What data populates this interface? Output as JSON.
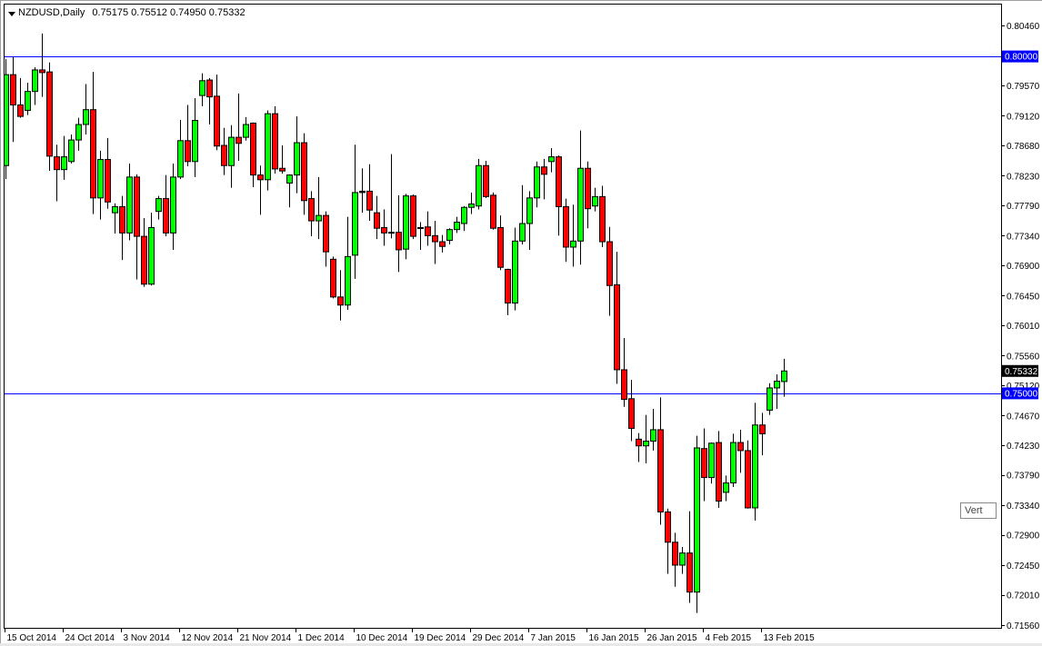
{
  "header": {
    "symbol_timeframe": "NZDUSD,Daily",
    "ohlc": "0.75175 0.75512 0.74950 0.75332",
    "menu_icon": "triangle-down-icon"
  },
  "tooltip": {
    "text": "Vert"
  },
  "chart_data": {
    "type": "candlestick",
    "symbol": "NZDUSD",
    "timeframe": "Daily",
    "ylim": [
      0.7156,
      0.8046
    ],
    "grid": false,
    "colors": {
      "bull": "#00ff00",
      "bear": "#ff0000",
      "outline": "#000000",
      "hline": "#0000ff",
      "background": "#ffffff"
    },
    "y_ticks": [
      "0.80460",
      "0.79570",
      "0.79120",
      "0.78680",
      "0.78230",
      "0.77790",
      "0.77340",
      "0.76900",
      "0.76450",
      "0.76010",
      "0.75560",
      "0.75120",
      "0.74670",
      "0.74230",
      "0.73790",
      "0.73340",
      "0.72900",
      "0.72450",
      "0.72010",
      "0.71560"
    ],
    "x_ticks": [
      "15 Oct 2014",
      "24 Oct 2014",
      "3 Nov 2014",
      "12 Nov 2014",
      "21 Nov 2014",
      "1 Dec 2014",
      "10 Dec 2014",
      "19 Dec 2014",
      "29 Dec 2014",
      "7 Jan 2015",
      "16 Jan 2015",
      "26 Jan 2015",
      "4 Feb 2015",
      "13 Feb 2015"
    ],
    "x_tick_every_bars": 8,
    "horizontal_lines": [
      {
        "price": 0.8,
        "label": "0.80000",
        "color": "#0000ff"
      },
      {
        "price": 0.75,
        "label": "0.75000",
        "color": "#0000ff"
      }
    ],
    "current_price": {
      "price": 0.75332,
      "label": "0.75332",
      "color": "#000000"
    },
    "ohlc_columns": [
      "open",
      "high",
      "low",
      "close"
    ],
    "candles": [
      [
        0.7838,
        0.7996,
        0.7818,
        0.7973
      ],
      [
        0.7973,
        0.7999,
        0.7873,
        0.7928
      ],
      [
        0.7928,
        0.7968,
        0.7909,
        0.7911
      ],
      [
        0.792,
        0.7961,
        0.7913,
        0.7948
      ],
      [
        0.7948,
        0.7984,
        0.7928,
        0.798
      ],
      [
        0.798,
        0.8034,
        0.794,
        0.7976
      ],
      [
        0.7977,
        0.7991,
        0.783,
        0.7852
      ],
      [
        0.7851,
        0.7869,
        0.7785,
        0.7832
      ],
      [
        0.7832,
        0.7882,
        0.7817,
        0.7851
      ],
      [
        0.7844,
        0.7884,
        0.7841,
        0.7876
      ],
      [
        0.7876,
        0.7909,
        0.786,
        0.7899
      ],
      [
        0.7899,
        0.7959,
        0.7884,
        0.7921
      ],
      [
        0.7921,
        0.7977,
        0.7766,
        0.779
      ],
      [
        0.779,
        0.786,
        0.7758,
        0.7847
      ],
      [
        0.7847,
        0.7879,
        0.7774,
        0.7784
      ],
      [
        0.7768,
        0.7782,
        0.7737,
        0.7777
      ],
      [
        0.7777,
        0.7793,
        0.7698,
        0.7738
      ],
      [
        0.7738,
        0.7841,
        0.7727,
        0.7821
      ],
      [
        0.7821,
        0.7825,
        0.7669,
        0.7733
      ],
      [
        0.7733,
        0.776,
        0.7658,
        0.7662
      ],
      [
        0.7662,
        0.7768,
        0.766,
        0.7746
      ],
      [
        0.777,
        0.7793,
        0.7758,
        0.7789
      ],
      [
        0.7789,
        0.7824,
        0.7733,
        0.7738
      ],
      [
        0.7738,
        0.7841,
        0.7713,
        0.7821
      ],
      [
        0.7821,
        0.7906,
        0.7818,
        0.7875
      ],
      [
        0.7875,
        0.7928,
        0.7837,
        0.7844
      ],
      [
        0.7844,
        0.7938,
        0.7821,
        0.7905
      ],
      [
        0.7942,
        0.7975,
        0.7926,
        0.7964
      ],
      [
        0.7965,
        0.7968,
        0.7899,
        0.794
      ],
      [
        0.7941,
        0.7973,
        0.7861,
        0.7867
      ],
      [
        0.7868,
        0.7894,
        0.7824,
        0.7838
      ],
      [
        0.7838,
        0.7898,
        0.7805,
        0.788
      ],
      [
        0.788,
        0.7945,
        0.7845,
        0.7871
      ],
      [
        0.788,
        0.791,
        0.7875,
        0.7899
      ],
      [
        0.7901,
        0.7902,
        0.7806,
        0.7824
      ],
      [
        0.7824,
        0.7838,
        0.7765,
        0.7817
      ],
      [
        0.7817,
        0.792,
        0.7801,
        0.7915
      ],
      [
        0.7915,
        0.7926,
        0.7826,
        0.7833
      ],
      [
        0.7834,
        0.7868,
        0.7826,
        0.783
      ],
      [
        0.7812,
        0.7825,
        0.7776,
        0.7824
      ],
      [
        0.7824,
        0.7911,
        0.7797,
        0.7872
      ],
      [
        0.7872,
        0.7886,
        0.7765,
        0.7786
      ],
      [
        0.7789,
        0.78,
        0.7733,
        0.7756
      ],
      [
        0.7756,
        0.7821,
        0.7729,
        0.7764
      ],
      [
        0.7764,
        0.777,
        0.7688,
        0.771
      ],
      [
        0.7699,
        0.7703,
        0.7641,
        0.7643
      ],
      [
        0.7643,
        0.7683,
        0.7608,
        0.7631
      ],
      [
        0.7631,
        0.7762,
        0.7624,
        0.7703
      ],
      [
        0.7705,
        0.7869,
        0.767,
        0.7798
      ],
      [
        0.7798,
        0.7834,
        0.7768,
        0.78
      ],
      [
        0.78,
        0.784,
        0.7756,
        0.7772
      ],
      [
        0.7768,
        0.7793,
        0.7729,
        0.7745
      ],
      [
        0.7746,
        0.7773,
        0.7719,
        0.7738
      ],
      [
        0.7739,
        0.7855,
        0.773,
        0.7739
      ],
      [
        0.7739,
        0.7794,
        0.768,
        0.7713
      ],
      [
        0.7714,
        0.7796,
        0.7699,
        0.7793
      ],
      [
        0.7793,
        0.7795,
        0.7729,
        0.7733
      ],
      [
        0.7746,
        0.7754,
        0.7713,
        0.7746
      ],
      [
        0.7747,
        0.777,
        0.7719,
        0.7734
      ],
      [
        0.7734,
        0.7756,
        0.7692,
        0.7725
      ],
      [
        0.7725,
        0.7735,
        0.7709,
        0.7718
      ],
      [
        0.7727,
        0.7745,
        0.7721,
        0.7743
      ],
      [
        0.7743,
        0.7762,
        0.7738,
        0.7754
      ],
      [
        0.7752,
        0.7778,
        0.7741,
        0.7776
      ],
      [
        0.7776,
        0.7798,
        0.7766,
        0.7781
      ],
      [
        0.7778,
        0.7848,
        0.7773,
        0.7838
      ],
      [
        0.7838,
        0.7845,
        0.779,
        0.7792
      ],
      [
        0.7794,
        0.7798,
        0.7743,
        0.7745
      ],
      [
        0.7746,
        0.7764,
        0.7683,
        0.7687
      ],
      [
        0.7684,
        0.7685,
        0.7616,
        0.7634
      ],
      [
        0.7634,
        0.7746,
        0.7623,
        0.7726
      ],
      [
        0.7726,
        0.7809,
        0.7721,
        0.7752
      ],
      [
        0.7752,
        0.78,
        0.7713,
        0.779
      ],
      [
        0.779,
        0.7844,
        0.7776,
        0.7836
      ],
      [
        0.7836,
        0.7848,
        0.7788,
        0.7825
      ],
      [
        0.7844,
        0.7864,
        0.7828,
        0.7851
      ],
      [
        0.7851,
        0.7853,
        0.7734,
        0.7777
      ],
      [
        0.7777,
        0.7789,
        0.7695,
        0.7717
      ],
      [
        0.7717,
        0.778,
        0.7688,
        0.7726
      ],
      [
        0.7726,
        0.789,
        0.7691,
        0.7834
      ],
      [
        0.7834,
        0.7844,
        0.7745,
        0.7774
      ],
      [
        0.7778,
        0.7805,
        0.777,
        0.7792
      ],
      [
        0.7792,
        0.7808,
        0.7717,
        0.7725
      ],
      [
        0.7725,
        0.7747,
        0.7615,
        0.766
      ],
      [
        0.7661,
        0.771,
        0.7514,
        0.7535
      ],
      [
        0.7535,
        0.7582,
        0.748,
        0.7491
      ],
      [
        0.7492,
        0.752,
        0.7429,
        0.7448
      ],
      [
        0.7432,
        0.7441,
        0.7398,
        0.7422
      ],
      [
        0.7422,
        0.7468,
        0.7396,
        0.7429
      ],
      [
        0.7429,
        0.7477,
        0.7415,
        0.7446
      ],
      [
        0.7446,
        0.7494,
        0.7305,
        0.7324
      ],
      [
        0.7324,
        0.7329,
        0.7232,
        0.7279
      ],
      [
        0.7279,
        0.7293,
        0.7213,
        0.7245
      ],
      [
        0.7245,
        0.7272,
        0.7232,
        0.7263
      ],
      [
        0.7263,
        0.7325,
        0.7189,
        0.7205
      ],
      [
        0.7205,
        0.7437,
        0.7174,
        0.7419
      ],
      [
        0.7418,
        0.7448,
        0.734,
        0.7375
      ],
      [
        0.7375,
        0.7427,
        0.7366,
        0.7426
      ],
      [
        0.7427,
        0.7444,
        0.733,
        0.734
      ],
      [
        0.7353,
        0.7378,
        0.734,
        0.7367
      ],
      [
        0.7367,
        0.744,
        0.7361,
        0.7427
      ],
      [
        0.7427,
        0.7446,
        0.7382,
        0.7415
      ],
      [
        0.7415,
        0.743,
        0.7329,
        0.733
      ],
      [
        0.733,
        0.7486,
        0.7311,
        0.7453
      ],
      [
        0.7453,
        0.7471,
        0.7408,
        0.744
      ],
      [
        0.7475,
        0.7515,
        0.7468,
        0.7508
      ],
      [
        0.7508,
        0.7528,
        0.7477,
        0.7518
      ],
      [
        0.75175,
        0.75512,
        0.7495,
        0.75332
      ]
    ]
  }
}
